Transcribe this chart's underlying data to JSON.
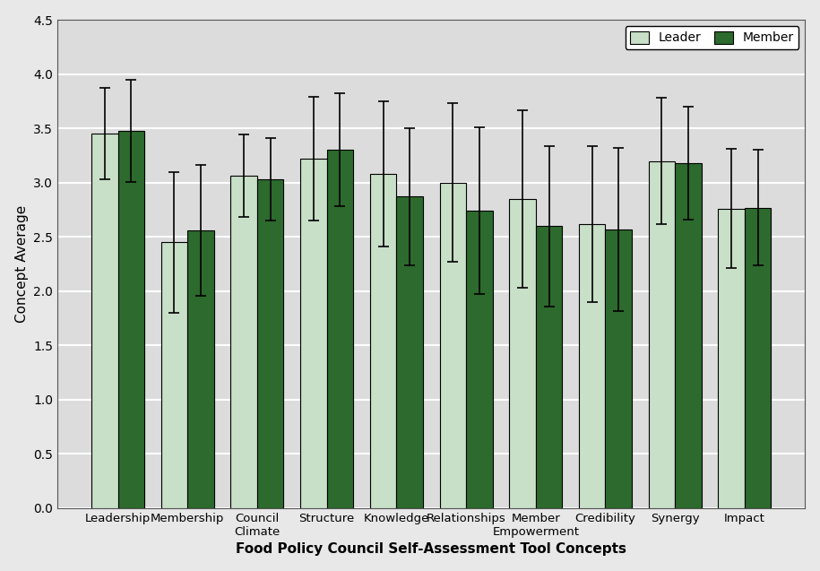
{
  "categories": [
    "Leadership",
    "Membership",
    "Council\nClimate",
    "Structure",
    "Knowledge",
    "Relationships",
    "Member\nEmpowerment",
    "Credibility",
    "Synergy",
    "Impact"
  ],
  "leader_means": [
    3.45,
    2.45,
    3.06,
    3.22,
    3.08,
    3.0,
    2.85,
    2.62,
    3.2,
    2.76
  ],
  "member_means": [
    3.48,
    2.56,
    3.03,
    3.3,
    2.87,
    2.74,
    2.6,
    2.57,
    3.18,
    2.77
  ],
  "leader_errors": [
    0.42,
    0.65,
    0.38,
    0.57,
    0.67,
    0.73,
    0.82,
    0.72,
    0.58,
    0.55
  ],
  "member_errors": [
    0.47,
    0.6,
    0.38,
    0.52,
    0.63,
    0.77,
    0.74,
    0.75,
    0.52,
    0.53
  ],
  "leader_color": "#c8dfc8",
  "member_color": "#2d6a2d",
  "bar_edge_color": "#000000",
  "bar_width": 0.38,
  "xlabel": "Food Policy Council Self-Assessment Tool Concepts",
  "ylabel": "Concept Average",
  "ylim": [
    0,
    4.5
  ],
  "yticks": [
    0,
    0.5,
    1.0,
    1.5,
    2.0,
    2.5,
    3.0,
    3.5,
    4.0,
    4.5
  ],
  "legend_labels": [
    "Leader",
    "Member"
  ],
  "background_color": "#e8e8e8",
  "plot_background_color": "#dcdcdc",
  "grid_color": "#ffffff",
  "figsize": [
    9.15,
    6.37
  ],
  "dpi": 100
}
